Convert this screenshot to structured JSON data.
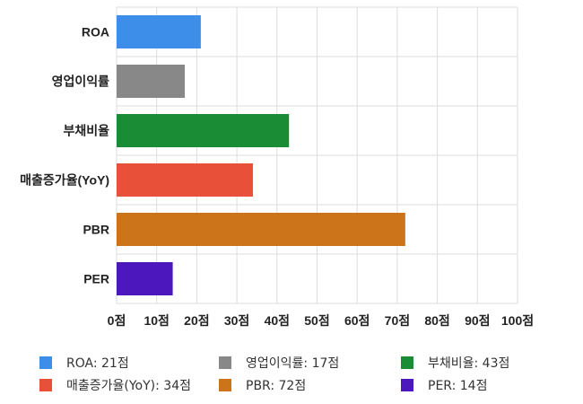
{
  "chart_data": {
    "type": "bar",
    "orientation": "horizontal",
    "categories": [
      "ROA",
      "영업이익률",
      "부채비율",
      "매출증가율(YoY)",
      "PBR",
      "PER"
    ],
    "values": [
      21,
      17,
      43,
      34,
      72,
      14
    ],
    "colors": [
      "#3d8ee8",
      "#888888",
      "#1a8c35",
      "#e8503a",
      "#cc7419",
      "#4c17bd"
    ],
    "xlim": [
      0,
      100
    ],
    "xticks": [
      0,
      10,
      20,
      30,
      40,
      50,
      60,
      70,
      80,
      90,
      100
    ],
    "tick_suffix": "점",
    "tick_labels": [
      "0점",
      "10점",
      "20점",
      "30점",
      "40점",
      "50점",
      "60점",
      "70점",
      "80점",
      "90점",
      "100점"
    ],
    "grid": true,
    "legend_position": "bottom",
    "legend": [
      {
        "label": "ROA: 21점",
        "color": "#3d8ee8"
      },
      {
        "label": "영업이익률: 17점",
        "color": "#888888"
      },
      {
        "label": "부채비율: 43점",
        "color": "#1a8c35"
      },
      {
        "label": "매출증가율(YoY): 34점",
        "color": "#e8503a"
      },
      {
        "label": "PBR: 72점",
        "color": "#cc7419"
      },
      {
        "label": "PER: 14점",
        "color": "#4c17bd"
      }
    ]
  }
}
